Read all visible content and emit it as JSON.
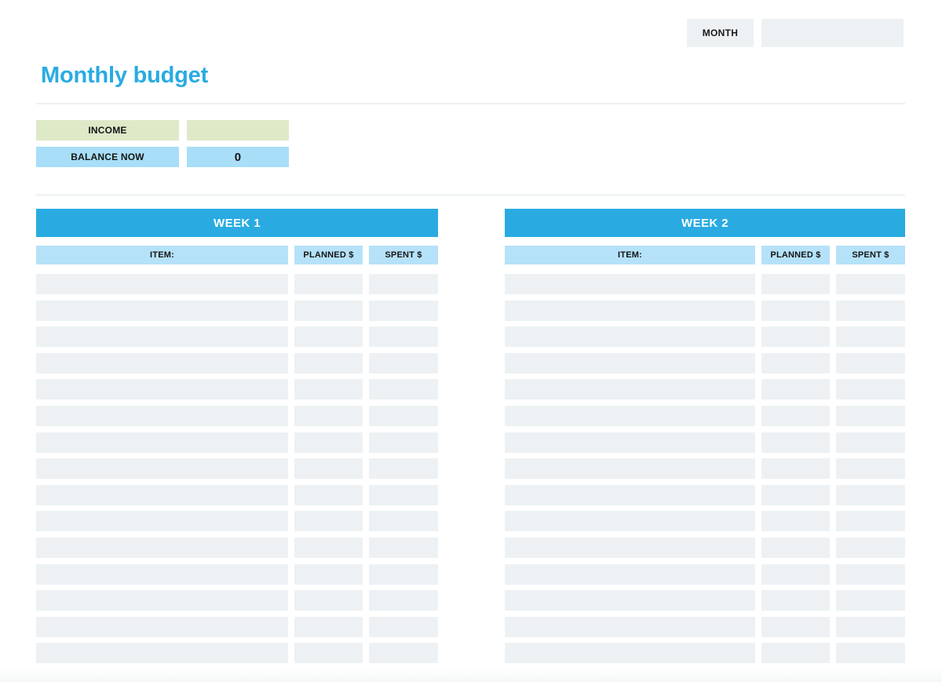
{
  "page": {
    "title": "Monthly budget"
  },
  "month_box": {
    "label": "MONTH",
    "value": ""
  },
  "summary": {
    "income": {
      "label": "INCOME",
      "value": ""
    },
    "balance": {
      "label": "BALANCE NOW",
      "value": "0"
    }
  },
  "weeks": [
    {
      "title": "WEEK 1",
      "columns": [
        "ITEM:",
        "PLANNED $",
        "SPENT $"
      ],
      "row_count": 15
    },
    {
      "title": "WEEK 2",
      "columns": [
        "ITEM:",
        "PLANNED $",
        "SPENT $"
      ],
      "row_count": 15
    }
  ],
  "colors": {
    "accent_blue": "#29abe2",
    "column_header_blue": "#b5e2f9",
    "balance_blue": "#a8def7",
    "income_green": "#dee9c8",
    "row_gray": "#edf1f4",
    "box_gray": "#eef1f4"
  }
}
